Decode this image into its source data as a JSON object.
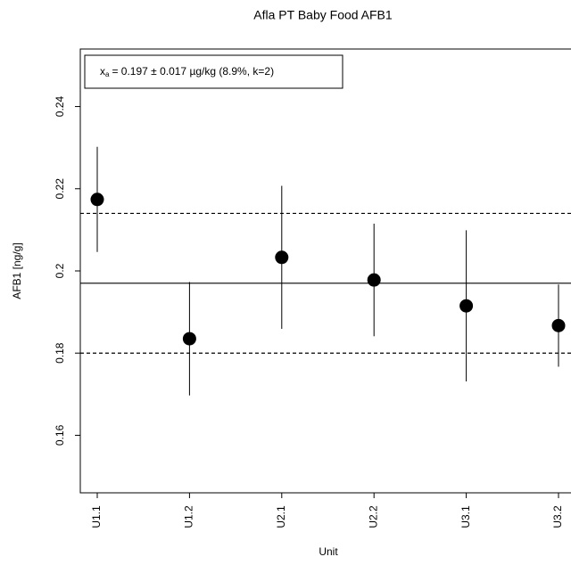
{
  "chart_data": {
    "type": "dot",
    "title": "Afla PT Baby Food AFB1",
    "x_label": "Unit",
    "y_label": "AFB1 [ng/g]",
    "categories": [
      "U1.1",
      "U1.2",
      "U2.1",
      "U2.2",
      "U3.1",
      "U3.2"
    ],
    "values": [
      0.2174,
      0.1835,
      0.2033,
      0.1978,
      0.1915,
      0.1867
    ],
    "errors": [
      0.0128,
      0.0138,
      0.0174,
      0.0137,
      0.0184,
      0.01
    ],
    "color": "#000000",
    "ylim": [
      0.146,
      0.254
    ],
    "yticks": [
      0.16,
      0.18,
      0.2,
      0.22,
      0.24
    ],
    "hlines": [
      {
        "value": 0.197,
        "style": "solid"
      },
      {
        "value": 0.214,
        "style": "dashed"
      },
      {
        "value": 0.18,
        "style": "dashed"
      }
    ],
    "annotation": {
      "symbol": "x",
      "subscript": "a",
      "text": "= 0.197 ± 0.017 µg/kg (8.9%, k=2)"
    }
  }
}
